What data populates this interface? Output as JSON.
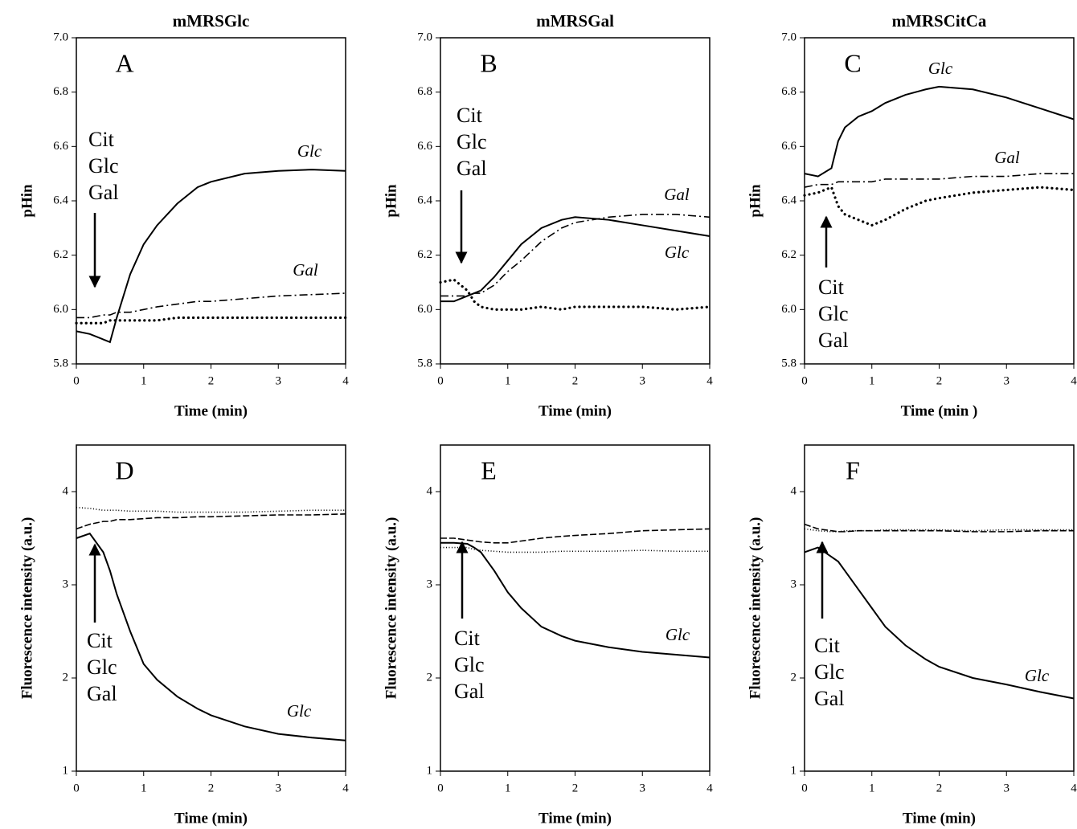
{
  "chart_data": [
    {
      "type": "line",
      "title": "mMRSGlc",
      "label": "A",
      "annotation": [
        "Cit",
        "Glc",
        "Gal"
      ],
      "xlabel": "Time (min)",
      "ylabel": "pHin",
      "x": [
        0,
        0.2,
        0.4,
        0.5,
        0.6,
        0.8,
        1.0,
        1.2,
        1.5,
        1.8,
        2.0,
        2.5,
        3.0,
        3.5,
        4.0
      ],
      "series": [
        {
          "name": "Glc",
          "style": "solid",
          "color": "#000000",
          "values": [
            5.92,
            5.91,
            5.89,
            5.88,
            5.97,
            6.13,
            6.24,
            6.31,
            6.39,
            6.45,
            6.47,
            6.5,
            6.51,
            6.515,
            6.51
          ]
        },
        {
          "name": "Gal",
          "style": "dashdot",
          "color": "#000000",
          "values": [
            5.97,
            5.97,
            5.98,
            5.98,
            5.99,
            5.99,
            6.0,
            6.01,
            6.02,
            6.03,
            6.03,
            6.04,
            6.05,
            6.055,
            6.06
          ]
        },
        {
          "style": "dotted",
          "color": "#000000",
          "values": [
            5.95,
            5.95,
            5.95,
            5.96,
            5.96,
            5.96,
            5.96,
            5.96,
            5.97,
            5.97,
            5.97,
            5.97,
            5.97,
            5.97,
            5.97
          ]
        }
      ],
      "xlim": [
        0,
        4
      ],
      "xticks": [
        0,
        1,
        2,
        3,
        4
      ],
      "ylim": [
        5.8,
        7.0
      ],
      "yticks": [
        5.8,
        {
          "value": 6,
          "label": "6.0"
        },
        6.2,
        6.4,
        6.6,
        6.8,
        {
          "value": 7,
          "label": "7.0"
        }
      ]
    },
    {
      "type": "line",
      "title": "mMRSGal",
      "label": "B",
      "annotation": [
        "Cit",
        "Glc",
        "Gal"
      ],
      "xlabel": "Time (min)",
      "ylabel": "pHin",
      "x": [
        0,
        0.2,
        0.4,
        0.5,
        0.6,
        0.8,
        1.0,
        1.2,
        1.5,
        1.8,
        2.0,
        2.5,
        3.0,
        3.5,
        4.0
      ],
      "series": [
        {
          "name": "Gal",
          "style": "dashdot",
          "color": "#000000",
          "values": [
            6.05,
            6.05,
            6.05,
            6.06,
            6.06,
            6.09,
            6.14,
            6.18,
            6.25,
            6.3,
            6.32,
            6.34,
            6.35,
            6.35,
            6.34
          ]
        },
        {
          "name": "Glc",
          "style": "solid",
          "color": "#000000",
          "values": [
            6.03,
            6.03,
            6.05,
            6.06,
            6.07,
            6.12,
            6.18,
            6.24,
            6.3,
            6.33,
            6.34,
            6.33,
            6.31,
            6.29,
            6.27
          ]
        },
        {
          "style": "dotted",
          "color": "#000000",
          "values": [
            6.1,
            6.11,
            6.07,
            6.03,
            6.01,
            6.0,
            6.0,
            6.0,
            6.01,
            6.0,
            6.01,
            6.01,
            6.01,
            6.0,
            6.01
          ]
        }
      ],
      "xlim": [
        0,
        4
      ],
      "xticks": [
        0,
        1,
        2,
        3,
        4
      ],
      "ylim": [
        5.8,
        7.0
      ],
      "yticks": [
        5.8,
        {
          "value": 6,
          "label": "6.0"
        },
        6.2,
        6.4,
        6.6,
        6.8,
        {
          "value": 7,
          "label": "7.0"
        }
      ]
    },
    {
      "type": "line",
      "title": "mMRSCitCa",
      "label": "C",
      "annotation": [
        "Cit",
        "Glc",
        "Gal"
      ],
      "xlabel": "Time (min )",
      "ylabel": "pHin",
      "x": [
        0,
        0.2,
        0.4,
        0.5,
        0.6,
        0.8,
        1.0,
        1.2,
        1.5,
        1.8,
        2.0,
        2.5,
        3.0,
        3.5,
        4.0
      ],
      "series": [
        {
          "name": "Glc",
          "style": "solid",
          "color": "#000000",
          "values": [
            6.5,
            6.49,
            6.52,
            6.62,
            6.67,
            6.71,
            6.73,
            6.76,
            6.79,
            6.81,
            6.82,
            6.81,
            6.78,
            6.74,
            6.7
          ]
        },
        {
          "name": "Gal",
          "style": "dashdot",
          "color": "#000000",
          "values": [
            6.45,
            6.46,
            6.46,
            6.47,
            6.47,
            6.47,
            6.47,
            6.48,
            6.48,
            6.48,
            6.48,
            6.49,
            6.49,
            6.5,
            6.5
          ]
        },
        {
          "style": "dotted",
          "color": "#000000",
          "values": [
            6.42,
            6.43,
            6.45,
            6.38,
            6.35,
            6.33,
            6.31,
            6.33,
            6.37,
            6.4,
            6.41,
            6.43,
            6.44,
            6.45,
            6.44
          ]
        }
      ],
      "xlim": [
        0,
        4
      ],
      "xticks": [
        0,
        1,
        2,
        3,
        4
      ],
      "ylim": [
        5.8,
        7.0
      ],
      "yticks": [
        5.8,
        {
          "value": 6,
          "label": "6.0"
        },
        6.2,
        6.4,
        6.6,
        6.8,
        {
          "value": 7,
          "label": "7.0"
        }
      ]
    },
    {
      "type": "line",
      "label": "D",
      "annotation": [
        "Cit",
        "Glc",
        "Gal"
      ],
      "xlabel": "Time (min)",
      "ylabel": "Fluorescence intensity (a.u.)",
      "x": [
        0,
        0.2,
        0.4,
        0.5,
        0.6,
        0.8,
        1.0,
        1.2,
        1.5,
        1.8,
        2.0,
        2.5,
        3.0,
        3.5,
        4.0
      ],
      "series": [
        {
          "name": "Glc",
          "style": "solid",
          "color": "#000000",
          "values": [
            3.5,
            3.55,
            3.35,
            3.15,
            2.9,
            2.5,
            2.15,
            1.98,
            1.8,
            1.67,
            1.6,
            1.48,
            1.4,
            1.36,
            1.33
          ]
        },
        {
          "style": "dashed",
          "color": "#000000",
          "values": [
            3.6,
            3.65,
            3.68,
            3.68,
            3.7,
            3.7,
            3.71,
            3.72,
            3.72,
            3.73,
            3.73,
            3.74,
            3.75,
            3.75,
            3.76
          ]
        },
        {
          "style": "dotted",
          "color": "#000000",
          "values": [
            3.83,
            3.82,
            3.8,
            3.8,
            3.8,
            3.79,
            3.79,
            3.79,
            3.78,
            3.78,
            3.78,
            3.78,
            3.79,
            3.8,
            3.8
          ]
        }
      ],
      "xlim": [
        0,
        4
      ],
      "xticks": [
        0,
        1,
        2,
        3,
        4
      ],
      "ylim": [
        1,
        4.5
      ],
      "yticks": [
        1,
        2,
        3,
        4
      ]
    },
    {
      "type": "line",
      "label": "E",
      "annotation": [
        "Cit",
        "Glc",
        "Gal"
      ],
      "xlabel": "Time (min)",
      "ylabel": "Fluorescence intensity (a.u.)",
      "x": [
        0,
        0.2,
        0.4,
        0.5,
        0.6,
        0.8,
        1.0,
        1.2,
        1.5,
        1.8,
        2.0,
        2.5,
        3.0,
        3.5,
        4.0
      ],
      "series": [
        {
          "name": "Glc",
          "style": "solid",
          "color": "#000000",
          "values": [
            3.45,
            3.45,
            3.44,
            3.4,
            3.35,
            3.15,
            2.92,
            2.75,
            2.55,
            2.45,
            2.4,
            2.33,
            2.28,
            2.25,
            2.22
          ]
        },
        {
          "style": "dashed",
          "color": "#000000",
          "values": [
            3.5,
            3.5,
            3.48,
            3.47,
            3.46,
            3.45,
            3.45,
            3.47,
            3.5,
            3.52,
            3.53,
            3.55,
            3.58,
            3.59,
            3.6
          ]
        },
        {
          "style": "dotted",
          "color": "#000000",
          "values": [
            3.4,
            3.4,
            3.4,
            3.38,
            3.37,
            3.36,
            3.35,
            3.35,
            3.35,
            3.36,
            3.36,
            3.36,
            3.37,
            3.36,
            3.36
          ]
        }
      ],
      "xlim": [
        0,
        4
      ],
      "xticks": [
        0,
        1,
        2,
        3,
        4
      ],
      "ylim": [
        1,
        4.5
      ],
      "yticks": [
        1,
        2,
        3,
        4
      ]
    },
    {
      "type": "line",
      "label": "F",
      "annotation": [
        "Cit",
        "Glc",
        "Gal"
      ],
      "xlabel": "Time (min)",
      "ylabel": "Fluorescence intensity (a.u.)",
      "x": [
        0,
        0.2,
        0.4,
        0.5,
        0.6,
        0.8,
        1.0,
        1.2,
        1.5,
        1.8,
        2.0,
        2.5,
        3.0,
        3.5,
        4.0
      ],
      "series": [
        {
          "name": "Glc",
          "style": "solid",
          "color": "#000000",
          "values": [
            3.35,
            3.4,
            3.3,
            3.25,
            3.15,
            2.95,
            2.75,
            2.55,
            2.35,
            2.2,
            2.12,
            2.0,
            1.93,
            1.85,
            1.78
          ]
        },
        {
          "style": "dashed",
          "color": "#000000",
          "values": [
            3.65,
            3.6,
            3.58,
            3.57,
            3.57,
            3.58,
            3.58,
            3.58,
            3.58,
            3.58,
            3.58,
            3.57,
            3.57,
            3.58,
            3.58
          ]
        },
        {
          "style": "dotted",
          "color": "#000000",
          "values": [
            3.6,
            3.58,
            3.57,
            3.57,
            3.58,
            3.58,
            3.58,
            3.59,
            3.59,
            3.59,
            3.59,
            3.58,
            3.59,
            3.59,
            3.59
          ]
        }
      ],
      "xlim": [
        0,
        4
      ],
      "xticks": [
        0,
        1,
        2,
        3,
        4
      ],
      "ylim": [
        1,
        4.5
      ],
      "yticks": [
        1,
        2,
        3,
        4
      ]
    }
  ]
}
